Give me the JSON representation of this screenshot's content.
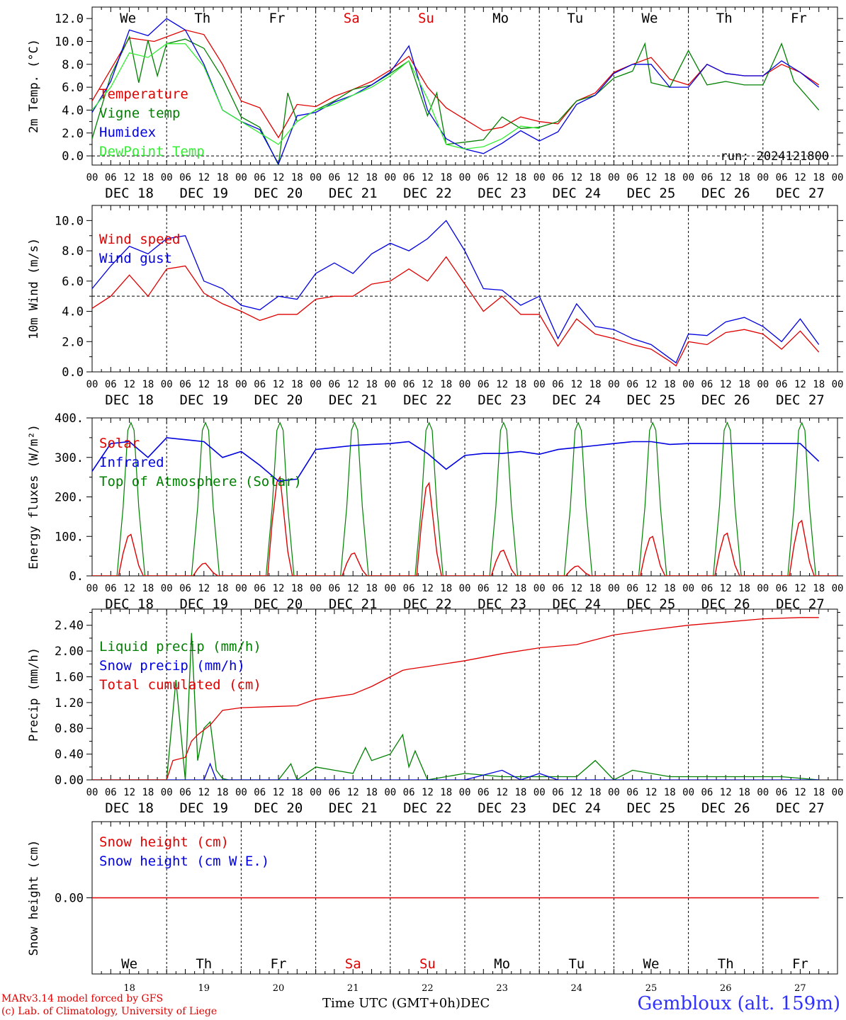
{
  "footer": {
    "model_line": "MARv3.14 model forced by GFS",
    "credit_line": "(c) Lab. of Climatology, University of Liege",
    "time_label": "Time UTC (GMT+0h)",
    "month_label": "DEC",
    "station": "Gembloux (alt. 159m)"
  },
  "days": [
    {
      "abbr": "We",
      "date": "DEC 18",
      "num": "18",
      "weekend": false
    },
    {
      "abbr": "Th",
      "date": "DEC 19",
      "num": "19",
      "weekend": false
    },
    {
      "abbr": "Fr",
      "date": "DEC 20",
      "num": "20",
      "weekend": false
    },
    {
      "abbr": "Sa",
      "date": "DEC 21",
      "num": "21",
      "weekend": true
    },
    {
      "abbr": "Su",
      "date": "DEC 22",
      "num": "22",
      "weekend": true
    },
    {
      "abbr": "Mo",
      "date": "DEC 23",
      "num": "23",
      "weekend": false
    },
    {
      "abbr": "Tu",
      "date": "DEC 24",
      "num": "24",
      "weekend": false
    },
    {
      "abbr": "We",
      "date": "DEC 25",
      "num": "25",
      "weekend": false
    },
    {
      "abbr": "Th",
      "date": "DEC 26",
      "num": "26",
      "weekend": false
    },
    {
      "abbr": "Fr",
      "date": "DEC 27",
      "num": "27",
      "weekend": false
    }
  ],
  "hour_ticks": [
    "00",
    "06",
    "12",
    "18"
  ],
  "colors": {
    "red": "#e00000",
    "green": "#008000",
    "blue": "#0000e0",
    "lightgreen": "#33ee33",
    "weekend": "#e00000"
  },
  "chart_data": [
    {
      "type": "line",
      "id": "temp",
      "ylabel": "2m Temp. (°C)",
      "ylim": [
        -0.8,
        13.0
      ],
      "yticks": [
        "0.0",
        "2.0",
        "4.0",
        "6.0",
        "8.0",
        "10.0",
        "12.0"
      ],
      "ytick_values": [
        0,
        2,
        4,
        6,
        8,
        10,
        12
      ],
      "ref_line": 0,
      "annotation": "run: 2024121800",
      "x_unit": "hours since DEC 18 00 UTC",
      "series": [
        {
          "name": "Temperature",
          "color": "red",
          "x": [
            0,
            12,
            20,
            30,
            36,
            42,
            48,
            54,
            60,
            66,
            72,
            78,
            84,
            90,
            96,
            102,
            108,
            114,
            120,
            126,
            132,
            138,
            144,
            150,
            156,
            162,
            168,
            174,
            180,
            186,
            192,
            198,
            204,
            210,
            216,
            222,
            228,
            234
          ],
          "y": [
            4.8,
            10.3,
            10.0,
            11.0,
            10.6,
            8.0,
            4.8,
            4.2,
            1.6,
            4.5,
            4.3,
            5.2,
            5.8,
            6.5,
            7.5,
            8.7,
            6.0,
            4.2,
            3.2,
            2.2,
            2.5,
            3.4,
            3.0,
            2.8,
            4.8,
            5.5,
            7.3,
            8.0,
            8.6,
            6.7,
            6.2,
            8.0,
            7.2,
            7.0,
            7.0,
            8.0,
            7.3,
            6.2
          ]
        },
        {
          "name": "Vigne temp",
          "color": "green",
          "x": [
            0,
            6,
            12,
            15,
            18,
            21,
            24,
            30,
            36,
            42,
            48,
            54,
            60,
            63,
            66,
            72,
            78,
            84,
            90,
            96,
            102,
            108,
            111,
            114,
            120,
            126,
            132,
            138,
            144,
            150,
            156,
            162,
            168,
            174,
            178,
            180,
            186,
            192,
            198,
            204,
            210,
            216,
            222,
            226,
            234
          ],
          "y": [
            1.5,
            7.0,
            10.4,
            6.4,
            10.1,
            7.0,
            9.8,
            10.2,
            9.4,
            6.8,
            3.4,
            2.5,
            -0.8,
            5.5,
            3.0,
            4.0,
            4.8,
            5.8,
            6.2,
            7.2,
            8.3,
            3.5,
            5.5,
            1.0,
            1.2,
            1.4,
            3.4,
            2.4,
            2.5,
            3.0,
            4.8,
            5.3,
            6.8,
            7.4,
            9.8,
            6.4,
            6.0,
            9.2,
            6.2,
            6.5,
            6.2,
            6.2,
            9.8,
            6.5,
            4.0
          ]
        },
        {
          "name": "Humidex",
          "color": "blue",
          "x": [
            0,
            6,
            12,
            18,
            24,
            30,
            36,
            42,
            48,
            54,
            60,
            66,
            72,
            78,
            84,
            90,
            96,
            102,
            108,
            114,
            120,
            126,
            132,
            138,
            144,
            150,
            156,
            162,
            168,
            174,
            180,
            186,
            192,
            198,
            204,
            210,
            216,
            222,
            228,
            234
          ],
          "y": [
            3.8,
            6.5,
            11.0,
            10.5,
            12.0,
            11.0,
            8.0,
            4.0,
            3.0,
            2.3,
            -0.7,
            3.5,
            3.8,
            4.7,
            5.3,
            6.2,
            7.3,
            9.6,
            4.0,
            1.5,
            0.6,
            0.2,
            1.1,
            2.2,
            1.3,
            2.1,
            4.5,
            5.3,
            7.2,
            8.0,
            8.0,
            6.0,
            6.0,
            8.0,
            7.2,
            7.0,
            7.0,
            8.3,
            7.3,
            6.0
          ]
        },
        {
          "name": "DewPoint Temp",
          "color": "lightgreen",
          "x": [
            0,
            6,
            12,
            18,
            24,
            30,
            36,
            42,
            48,
            54,
            60,
            66,
            72,
            78,
            84,
            90,
            96,
            102,
            108,
            114,
            120,
            126,
            132,
            138,
            144
          ],
          "y": [
            4.0,
            6.0,
            9.0,
            8.6,
            9.8,
            9.8,
            7.8,
            4.0,
            3.0,
            2.0,
            1.0,
            3.0,
            4.0,
            4.5,
            5.3,
            6.0,
            7.0,
            8.3,
            5.0,
            1.0,
            0.6,
            0.8,
            1.5,
            2.6,
            2.4
          ]
        }
      ]
    },
    {
      "type": "line",
      "id": "wind",
      "ylabel": "10m Wind (m/s)",
      "ylim": [
        0,
        11.0
      ],
      "yticks": [
        "0.0",
        "2.0",
        "4.0",
        "6.0",
        "8.0",
        "10.0"
      ],
      "ytick_values": [
        0,
        2,
        4,
        6,
        8,
        10
      ],
      "ref_line": 5,
      "series": [
        {
          "name": "Wind speed",
          "color": "red",
          "x": [
            0,
            6,
            12,
            18,
            24,
            30,
            36,
            42,
            48,
            54,
            60,
            66,
            72,
            78,
            84,
            90,
            96,
            102,
            108,
            114,
            120,
            126,
            132,
            138,
            144,
            150,
            156,
            162,
            168,
            174,
            180,
            186,
            188,
            192,
            198,
            204,
            210,
            216,
            222,
            228,
            234
          ],
          "y": [
            4.2,
            5.0,
            6.4,
            5.0,
            6.8,
            7.0,
            5.2,
            4.5,
            4.0,
            3.4,
            3.8,
            3.8,
            4.8,
            5.0,
            5.0,
            5.8,
            6.0,
            6.8,
            6.0,
            7.6,
            5.8,
            4.0,
            5.0,
            3.8,
            3.8,
            1.7,
            3.5,
            2.5,
            2.2,
            1.8,
            1.5,
            0.7,
            0.4,
            2.0,
            1.8,
            2.6,
            2.8,
            2.5,
            1.5,
            2.7,
            1.3
          ]
        },
        {
          "name": "Wind gust",
          "color": "blue",
          "x": [
            0,
            6,
            12,
            18,
            24,
            30,
            36,
            42,
            48,
            54,
            60,
            66,
            72,
            78,
            84,
            90,
            96,
            102,
            108,
            114,
            120,
            126,
            132,
            138,
            144,
            150,
            156,
            162,
            168,
            174,
            180,
            186,
            188,
            192,
            198,
            204,
            210,
            216,
            222,
            228,
            234
          ],
          "y": [
            5.5,
            7.0,
            8.3,
            7.8,
            8.8,
            9.0,
            6.0,
            5.5,
            4.4,
            4.1,
            5.0,
            4.8,
            6.5,
            7.2,
            6.5,
            7.8,
            8.5,
            8.0,
            8.8,
            10.0,
            8.0,
            5.5,
            5.4,
            4.4,
            5.0,
            2.2,
            4.5,
            3.0,
            2.8,
            2.2,
            1.8,
            0.9,
            0.6,
            2.5,
            2.4,
            3.3,
            3.6,
            3.0,
            2.0,
            3.5,
            1.8
          ]
        }
      ]
    },
    {
      "type": "line",
      "id": "energy",
      "ylabel": "Energy fluxes (W/m²)",
      "ylim": [
        0,
        400
      ],
      "yticks": [
        "0.",
        "100.",
        "200.",
        "300.",
        "400."
      ],
      "ytick_values": [
        0,
        100,
        200,
        300,
        400
      ],
      "series": [
        {
          "name": "Solar",
          "color": "red",
          "peaks": [
            105,
            32,
            250,
            58,
            235,
            65,
            25,
            100,
            108,
            140
          ]
        },
        {
          "name": "Infrared",
          "color": "blue",
          "x": [
            0,
            6,
            12,
            18,
            24,
            30,
            36,
            42,
            48,
            54,
            60,
            66,
            72,
            78,
            84,
            90,
            96,
            102,
            108,
            114,
            120,
            126,
            132,
            138,
            144,
            150,
            156,
            162,
            168,
            174,
            180,
            186,
            192,
            198,
            204,
            210,
            216,
            222,
            228,
            234
          ],
          "y": [
            265,
            335,
            340,
            300,
            350,
            345,
            340,
            300,
            315,
            280,
            240,
            245,
            320,
            325,
            330,
            333,
            335,
            340,
            310,
            270,
            305,
            310,
            310,
            315,
            308,
            320,
            325,
            330,
            335,
            340,
            340,
            333,
            335,
            335,
            335,
            335,
            335,
            335,
            335,
            290
          ]
        },
        {
          "name": "Top of Atmosphere (Solar)",
          "color": "green",
          "peak": 388
        }
      ]
    },
    {
      "type": "line",
      "id": "precip",
      "ylabel": "Precip (mm/h)",
      "ylim": [
        0,
        2.65
      ],
      "yticks": [
        "0.00",
        "0.40",
        "0.80",
        "1.20",
        "1.60",
        "2.00",
        "2.40"
      ],
      "ytick_values": [
        0,
        0.4,
        0.8,
        1.2,
        1.6,
        2.0,
        2.4
      ],
      "series": [
        {
          "name": "Liquid precip (mm/h)",
          "color": "green",
          "x": [
            0,
            24,
            27,
            30,
            32,
            34,
            36,
            38,
            40,
            42,
            44,
            48,
            60,
            64,
            66,
            72,
            78,
            84,
            88,
            90,
            96,
            100,
            102,
            104,
            108,
            120,
            132,
            144,
            156,
            162,
            168,
            174,
            186,
            198,
            210,
            222,
            234
          ],
          "y": [
            0,
            0,
            1.55,
            0,
            2.28,
            0.3,
            0.8,
            0.9,
            0.15,
            0.02,
            0,
            0,
            0,
            0.25,
            0,
            0.2,
            0.15,
            0.1,
            0.5,
            0.3,
            0.4,
            0.7,
            0.2,
            0.45,
            0,
            0.1,
            0.05,
            0.05,
            0.05,
            0.3,
            0,
            0.15,
            0.05,
            0.05,
            0.05,
            0.05,
            0
          ]
        },
        {
          "name": "Snow precip (mm/h)",
          "color": "blue",
          "x": [
            0,
            36,
            38,
            40,
            42,
            60,
            120,
            132,
            138,
            144,
            150,
            234
          ],
          "y": [
            0,
            0,
            0.25,
            0,
            0,
            0,
            0,
            0.15,
            0,
            0.1,
            0,
            0
          ]
        },
        {
          "name": "Total cumulated (cm)",
          "color": "red",
          "x": [
            0,
            24,
            26,
            30,
            32,
            34,
            38,
            42,
            48,
            60,
            66,
            72,
            84,
            90,
            96,
            100,
            102,
            108,
            120,
            132,
            144,
            156,
            168,
            180,
            192,
            204,
            216,
            228,
            234
          ],
          "y": [
            0,
            0,
            0.3,
            0.35,
            0.6,
            0.7,
            0.85,
            1.08,
            1.12,
            1.14,
            1.15,
            1.25,
            1.33,
            1.45,
            1.6,
            1.7,
            1.72,
            1.76,
            1.85,
            1.96,
            2.05,
            2.1,
            2.25,
            2.33,
            2.4,
            2.45,
            2.5,
            2.52,
            2.52
          ]
        }
      ]
    },
    {
      "type": "line",
      "id": "snow",
      "ylabel": "Snow height (cm)",
      "ylim": [
        -1,
        1
      ],
      "yticks": [
        "0.00"
      ],
      "ytick_values": [
        0
      ],
      "series": [
        {
          "name": "Snow height (cm)",
          "color": "red",
          "x": [
            0,
            234
          ],
          "y": [
            0,
            0
          ]
        },
        {
          "name": "Snow height (cm W.E.)",
          "color": "blue",
          "x": [],
          "y": []
        }
      ]
    }
  ]
}
